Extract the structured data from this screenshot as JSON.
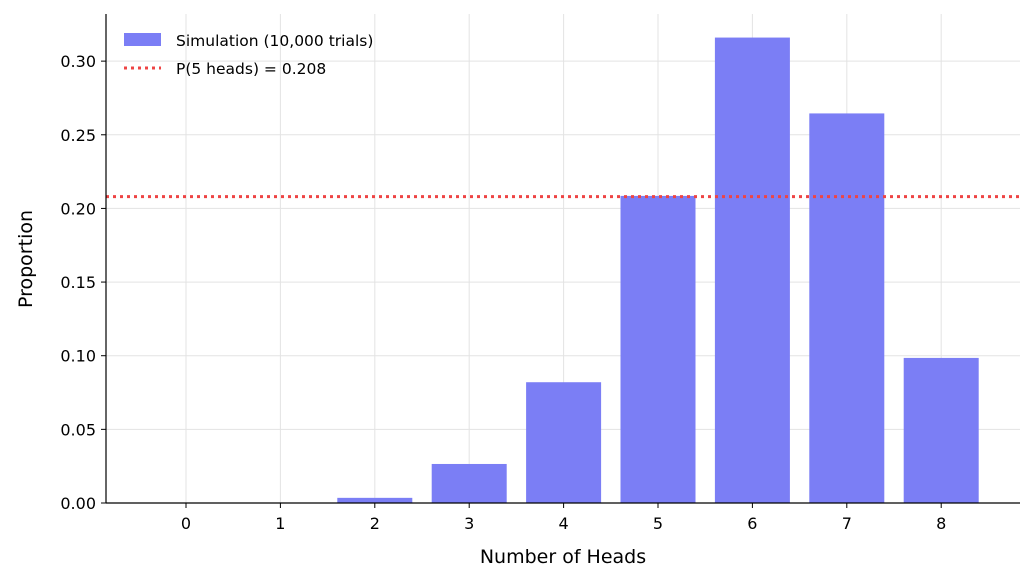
{
  "chart_data": {
    "type": "bar",
    "categories": [
      "0",
      "1",
      "2",
      "3",
      "4",
      "5",
      "6",
      "7",
      "8"
    ],
    "values": [
      0.0,
      0.0,
      0.0035,
      0.0265,
      0.082,
      0.2085,
      0.316,
      0.2645,
      0.0985
    ],
    "series_name": "Simulation (10,000 trials)",
    "bar_color": "#7b7ef5",
    "reference_line": {
      "value": 0.208,
      "label": "P(5 heads) = 0.208",
      "color": "#ee4444",
      "style": "dotted"
    },
    "xlabel": "Number of Heads",
    "ylabel": "Proportion",
    "ylim": [
      0,
      0.332
    ],
    "yticks": [
      "0.00",
      "0.05",
      "0.10",
      "0.15",
      "0.20",
      "0.25",
      "0.30"
    ],
    "ytick_values": [
      0,
      0.05,
      0.1,
      0.15,
      0.2,
      0.25,
      0.3
    ],
    "grid": true,
    "legend_position": "top-left"
  }
}
